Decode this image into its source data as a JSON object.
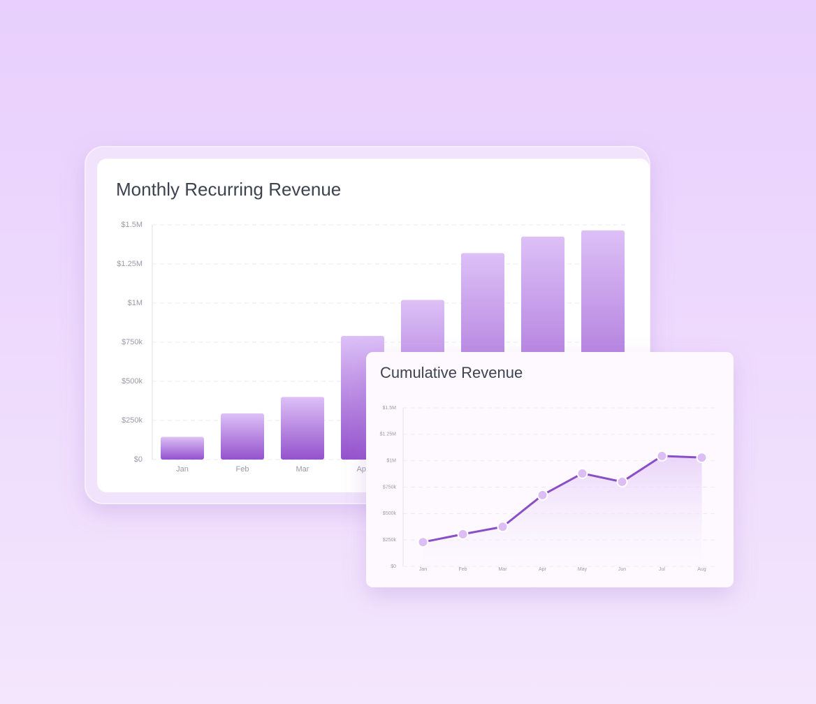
{
  "chart_data": [
    {
      "type": "bar",
      "title": "Monthly Recurring Revenue",
      "categories": [
        "Jan",
        "Feb",
        "Mar",
        "Apr",
        null,
        null,
        null,
        null
      ],
      "values": [
        145000,
        295000,
        400000,
        790000,
        1020000,
        1320000,
        1425000,
        1465000
      ],
      "color": "#8e4cc6",
      "ylim": [
        0,
        1500000
      ],
      "yticks": [
        {
          "value": 0,
          "label": "$0"
        },
        {
          "value": 250000,
          "label": "$250k"
        },
        {
          "value": 500000,
          "label": "$500k"
        },
        {
          "value": 750000,
          "label": "$750k"
        },
        {
          "value": 1000000,
          "label": "$1M"
        },
        {
          "value": 1250000,
          "label": "$1.25M"
        },
        {
          "value": 1500000,
          "label": "$1.5M"
        }
      ],
      "grid": true
    },
    {
      "type": "line",
      "title": "Cumulative Revenue",
      "categories": [
        "Jan",
        "Feb",
        "Mar",
        "Apr",
        "May",
        "Jun",
        "Jul",
        "Aug"
      ],
      "values": [
        230000,
        305000,
        375000,
        675000,
        880000,
        800000,
        1045000,
        1030000
      ],
      "color": "#8a4fc7",
      "ylim": [
        0,
        1500000
      ],
      "yticks": [
        {
          "value": 0,
          "label": "$0"
        },
        {
          "value": 250000,
          "label": "$250k"
        },
        {
          "value": 500000,
          "label": "$500k"
        },
        {
          "value": 750000,
          "label": "$750k"
        },
        {
          "value": 1000000,
          "label": "$1M"
        },
        {
          "value": 1250000,
          "label": "$1.25M"
        },
        {
          "value": 1500000,
          "label": "$1.5M"
        }
      ],
      "grid": true
    }
  ]
}
